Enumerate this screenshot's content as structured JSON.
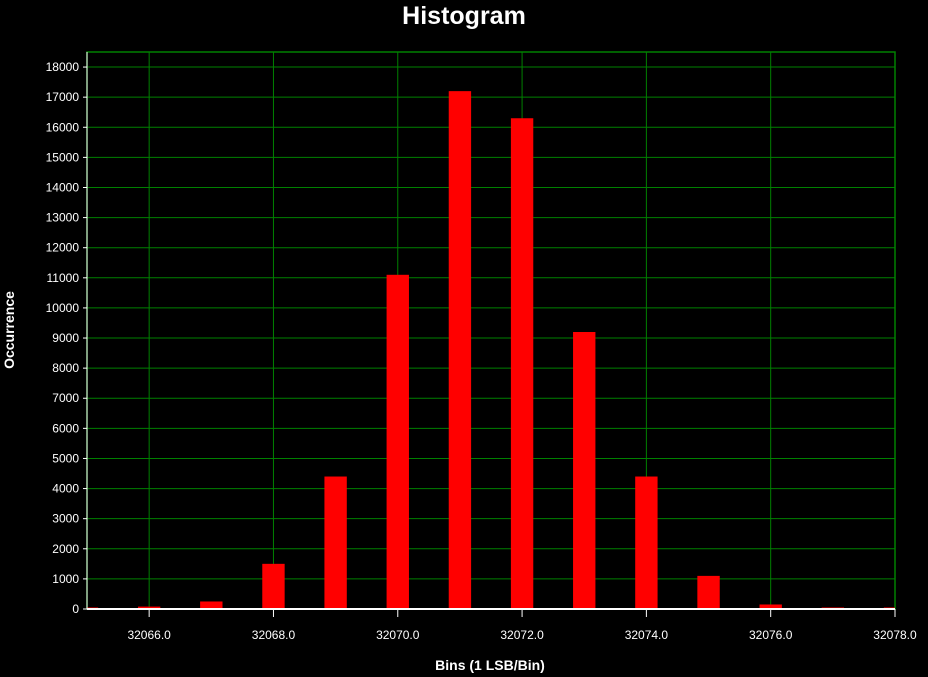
{
  "chart_data": {
    "type": "bar",
    "title": "Histogram",
    "xlabel": "Bins (1 LSB/Bin)",
    "ylabel": "Occurrence",
    "xlim": [
      32065.0,
      32078.0
    ],
    "ylim": [
      0,
      18500
    ],
    "x_ticks": [
      "32066.0",
      "32068.0",
      "32070.0",
      "32072.0",
      "32074.0",
      "32076.0",
      "32078.0"
    ],
    "y_ticks": [
      "0",
      "1000",
      "2000",
      "3000",
      "4000",
      "5000",
      "6000",
      "7000",
      "8000",
      "9000",
      "10000",
      "11000",
      "12000",
      "13000",
      "14000",
      "15000",
      "16000",
      "17000",
      "18000"
    ],
    "bins": [
      32065,
      32066,
      32067,
      32068,
      32069,
      32070,
      32071,
      32072,
      32073,
      32074,
      32075,
      32076,
      32077,
      32078
    ],
    "values": [
      50,
      80,
      250,
      1500,
      4400,
      11100,
      17200,
      16300,
      9200,
      4400,
      1100,
      150,
      50,
      50
    ],
    "grid": true,
    "colors": {
      "background": "#000000",
      "bar": "#ff0000",
      "grid": "#008000",
      "axis": "#ffffff",
      "text": "#ffffff"
    }
  }
}
